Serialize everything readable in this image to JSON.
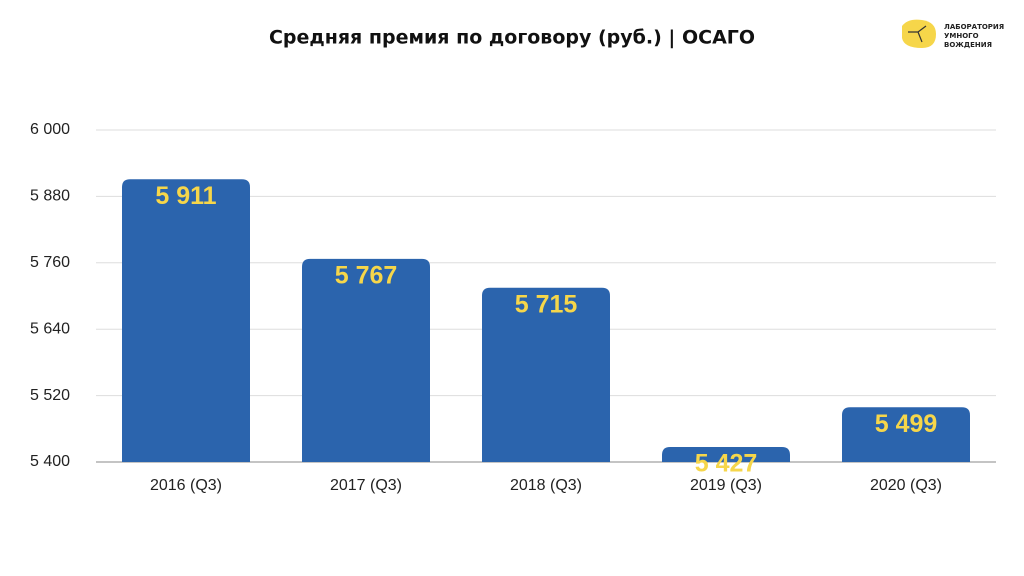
{
  "chart_data": {
    "type": "bar",
    "title": "Средняя премия по договору (руб.) | ОСАГО",
    "categories": [
      "2016 (Q3)",
      "2017 (Q3)",
      "2018 (Q3)",
      "2019 (Q3)",
      "2020 (Q3)"
    ],
    "values": [
      5911,
      5767,
      5715,
      5427,
      5499
    ],
    "value_labels": [
      "5 911",
      "5 767",
      "5 715",
      "5 427",
      "5 499"
    ],
    "color": "#2b64ad",
    "ylim": [
      5400,
      6000
    ],
    "yticks": [
      {
        "value": 5400,
        "label": "5 400"
      },
      {
        "value": 5520,
        "label": "5 520"
      },
      {
        "value": 5640,
        "label": "5 640"
      },
      {
        "value": 5760,
        "label": "5 760"
      },
      {
        "value": 5880,
        "label": "5 880"
      },
      {
        "value": 6000,
        "label": "6 000"
      }
    ],
    "grid": true
  },
  "logo": [
    "ЛАБОРАТОРИЯ",
    "УМНОГО",
    "ВОЖДЕНИЯ"
  ]
}
